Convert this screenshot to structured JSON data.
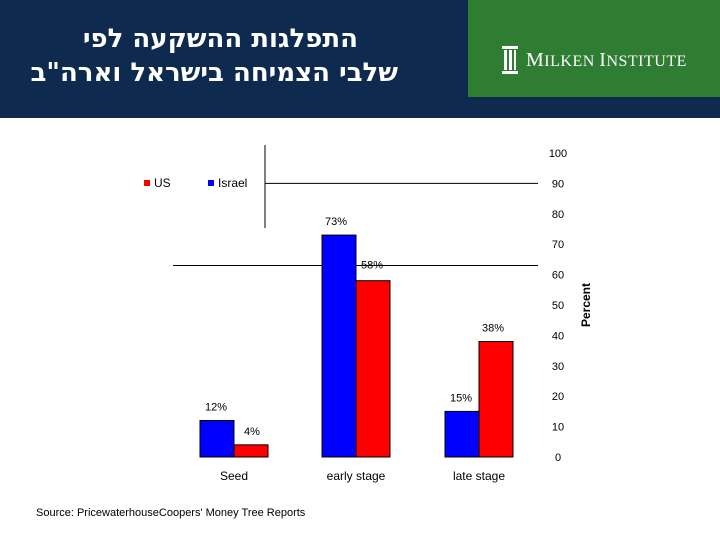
{
  "header": {
    "title_line1": "התפלגות ההשקעה לפי",
    "title_line2": "שלבי הצמיחה בישראל וארה\"ב",
    "logo_first": "M",
    "logo_first_rest": "ILKEN",
    "logo_second": "I",
    "logo_second_rest": "NSTITUTE",
    "logo_icon": "columns-icon",
    "colors": {
      "navy": "#0e2a4f",
      "green": "#2e7d32"
    }
  },
  "source": "Source: PricewaterhouseCoopers' Money Tree Reports",
  "chart_data": {
    "type": "bar",
    "title": "",
    "categories": [
      "Seed",
      "early stage",
      "late stage"
    ],
    "series": [
      {
        "name": "Israel",
        "color": "#0000ff",
        "values": [
          12,
          73,
          15
        ],
        "labels": [
          "12%",
          "73%",
          "15%"
        ]
      },
      {
        "name": "US",
        "color": "#ff0000",
        "values": [
          4,
          58,
          38
        ],
        "labels": [
          "4%",
          "58%",
          "38%"
        ]
      }
    ],
    "ylabel": "Percent",
    "xlabel": "",
    "ylim": [
      0,
      100
    ],
    "yticks": [
      0,
      10,
      20,
      30,
      40,
      50,
      60,
      70,
      80,
      90,
      100
    ],
    "y_axis_side": "right",
    "legend_position": "top-left",
    "grid": false
  }
}
